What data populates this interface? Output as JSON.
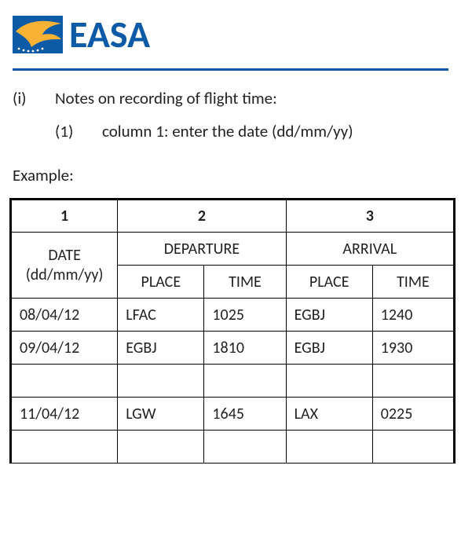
{
  "brand": {
    "name": "EASA",
    "text_color": "#0d5aa7",
    "icon_bg": "#0d5aa7",
    "bird_color": "#f9b233",
    "star_color": "#ffffff",
    "divider_color": "#0d5aa7"
  },
  "notes": {
    "marker_i": "(i)",
    "text_i": "Notes on recording of flight time:",
    "marker_1": "(1)",
    "text_1": "column 1: enter the date (dd/mm/yy)"
  },
  "example_label": "Example:",
  "table": {
    "type": "table",
    "border_color": "#000000",
    "background_color": "#ffffff",
    "header_numbers": [
      "1",
      "2",
      "3"
    ],
    "group_headers": {
      "date": "DATE\n(dd/mm/yy)",
      "departure": "DEPARTURE",
      "arrival": "ARRIVAL"
    },
    "sub_headers": {
      "dep_place": "PLACE",
      "dep_time": "TIME",
      "arr_place": "PLACE",
      "arr_time": "TIME"
    },
    "rows": [
      {
        "date": "08/04/12",
        "dep_place": "LFAC",
        "dep_time": "1025",
        "arr_place": "EGBJ",
        "arr_time": "1240"
      },
      {
        "date": "09/04/12",
        "dep_place": "EGBJ",
        "dep_time": "1810",
        "arr_place": "EGBJ",
        "arr_time": "1930"
      },
      {
        "date": "",
        "dep_place": "",
        "dep_time": "",
        "arr_place": "",
        "arr_time": ""
      },
      {
        "date": "11/04/12",
        "dep_place": "LGW",
        "dep_time": "1645",
        "arr_place": "LAX",
        "arr_time": "0225"
      },
      {
        "date": "",
        "dep_place": "",
        "dep_time": "",
        "arr_place": "",
        "arr_time": ""
      }
    ]
  },
  "typography": {
    "body_font": "Calibri",
    "body_size_pt": 16,
    "logo_size_pt": 36
  }
}
